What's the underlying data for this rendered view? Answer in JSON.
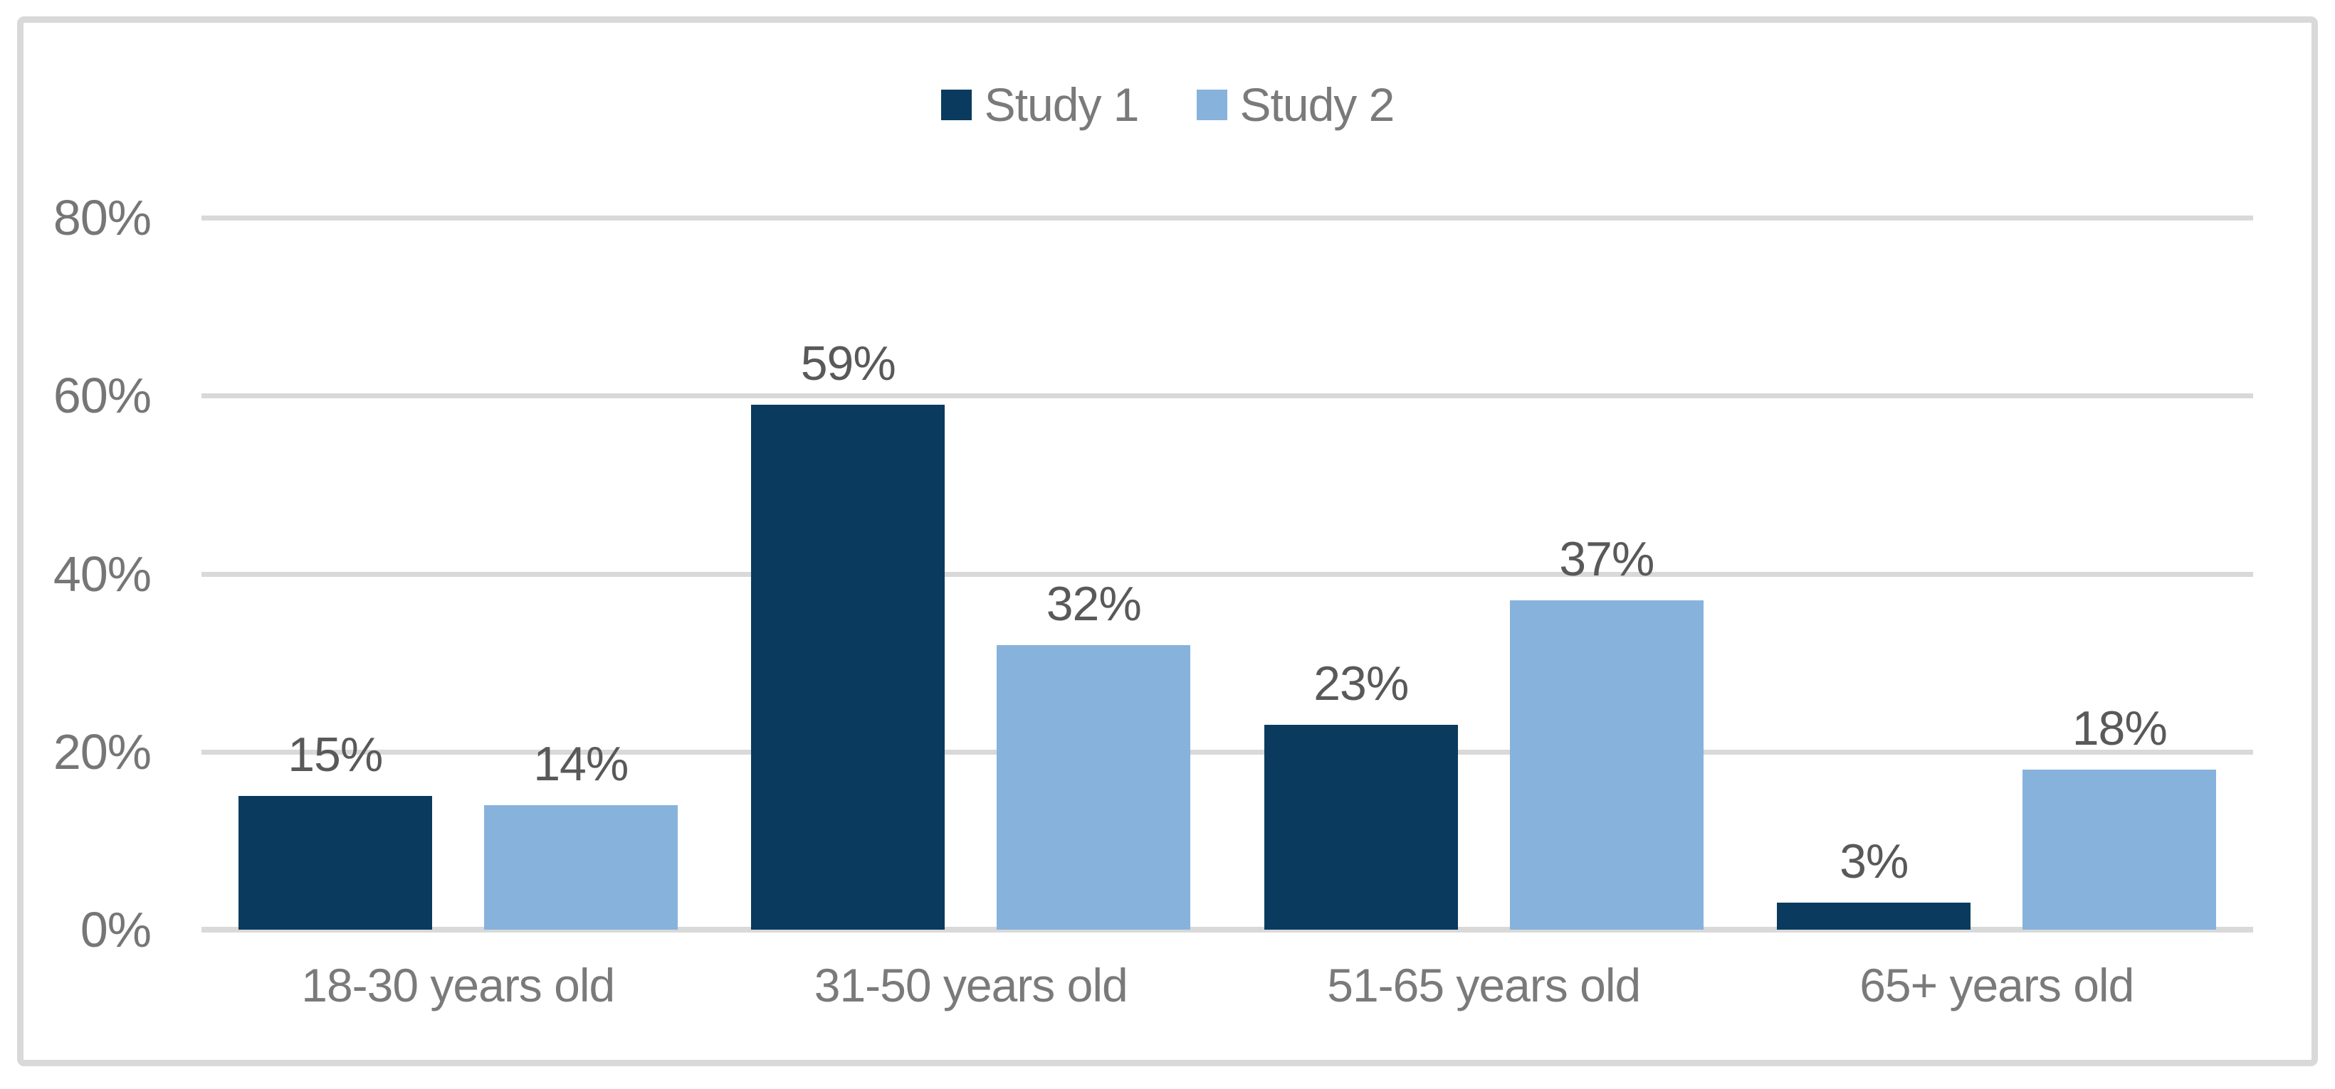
{
  "chart_data": {
    "type": "bar",
    "title": "",
    "categories": [
      "18-30 years old",
      "31-50 years old",
      "51-65 years old",
      "65+ years old"
    ],
    "series": [
      {
        "name": "Study 1",
        "color": "#0A3B5E",
        "values": [
          15,
          59,
          23,
          3
        ],
        "labels": [
          "15%",
          "59%",
          "23%",
          "3%"
        ]
      },
      {
        "name": "Study 2",
        "color": "#87B2DC",
        "values": [
          14,
          32,
          37,
          18
        ],
        "labels": [
          "14%",
          "32%",
          "37%",
          "18%"
        ]
      }
    ],
    "y_axis": {
      "ticks": [
        "0%",
        "20%",
        "40%",
        "60%",
        "80%"
      ],
      "min": 0,
      "max": 80
    },
    "grid": true,
    "legend_position": "top",
    "data_labels": true
  },
  "style": {
    "background": "#FFFFFF",
    "border_color": "#D9D9D9",
    "grid_color": "#D9D9D9",
    "tick_text_color": "#767676",
    "category_text_color": "#7A7A7A",
    "legend_text_color": "#7A7A7A",
    "data_label_color": "#595959"
  }
}
